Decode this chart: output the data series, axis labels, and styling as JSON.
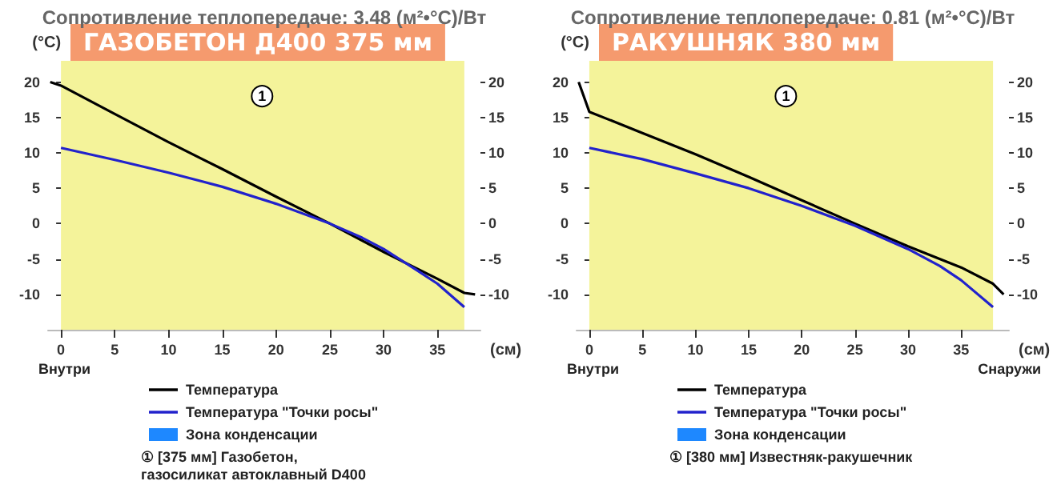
{
  "chart_data": [
    {
      "type": "line",
      "title": "ГАЗОБЕТОН Д400 375 мм",
      "subtitle": "Сопротивление теплопередаче: 3.48 (м²•°C)/Вт",
      "xlabel": "(см)",
      "ylabel": "(°C)",
      "xlim": [
        -1.2,
        39
      ],
      "xticks": [
        0,
        5,
        10,
        15,
        20,
        25,
        30,
        35
      ],
      "ylim": [
        -15,
        23
      ],
      "yticks": [
        -10,
        -5,
        0,
        5,
        10,
        15,
        20
      ],
      "y2lim": [
        -15,
        23
      ],
      "y2ticks": [
        -10,
        -5,
        0,
        5,
        10,
        15,
        20
      ],
      "grid": false,
      "legend": "bottom",
      "marker": "none",
      "line_style": "solid",
      "bands": [
        {
          "axis": "x",
          "from": 0,
          "to": 37.5,
          "color": "#f4f39a"
        }
      ],
      "series": [
        {
          "name": "Температура",
          "color": "#000000",
          "x": [
            -1,
            0,
            5,
            10,
            15,
            20,
            25,
            30,
            35,
            37.5,
            38.5
          ],
          "values": [
            20,
            19.5,
            15.5,
            11.5,
            7.7,
            3.8,
            0,
            -4,
            -7.8,
            -9.8,
            -10
          ]
        },
        {
          "name": "Температура \"Точки росы\"",
          "color": "#2222cc",
          "x": [
            0,
            5,
            10,
            15,
            20,
            25,
            28,
            30,
            33,
            35,
            37.5
          ],
          "values": [
            10.7,
            9,
            7.2,
            5.2,
            2.8,
            0,
            -2,
            -3.6,
            -6.5,
            -8.5,
            -11.8
          ]
        },
        {
          "name": "Зона конденсации",
          "type": "area",
          "color": "#1e88ff"
        }
      ],
      "annotations": [
        {
          "text": "1",
          "x": 18.7,
          "y": 18
        },
        "Внутри",
        "① [375 мм] Газобетон, газосиликат автоклавный D400"
      ]
    },
    {
      "type": "line",
      "title": "РАКУШНЯК 380 мм",
      "subtitle": "Сопротивление теплопередаче: 0.81 (м²•°C)/Вт",
      "xlabel": "(см)",
      "ylabel": "(°C)",
      "xlim": [
        -1.2,
        39.5
      ],
      "xticks": [
        0,
        5,
        10,
        15,
        20,
        25,
        30,
        35
      ],
      "ylim": [
        -15,
        23
      ],
      "yticks": [
        -10,
        -5,
        0,
        5,
        10,
        15,
        20
      ],
      "y2lim": [
        -15,
        23
      ],
      "y2ticks": [
        -10,
        -5,
        0,
        5,
        10,
        15,
        20
      ],
      "grid": false,
      "legend": "bottom",
      "marker": "none",
      "line_style": "solid",
      "bands": [
        {
          "axis": "x",
          "from": 0,
          "to": 38,
          "color": "#f4f39a"
        }
      ],
      "series": [
        {
          "name": "Температура",
          "color": "#000000",
          "x": [
            -1,
            0,
            5,
            10,
            15,
            20,
            25,
            30,
            35,
            38,
            39
          ],
          "values": [
            20,
            15.8,
            12.8,
            9.8,
            6.6,
            3.3,
            0,
            -3.2,
            -6.2,
            -8.5,
            -10
          ]
        },
        {
          "name": "Температура \"Точки росы\"",
          "color": "#2222cc",
          "x": [
            0,
            5,
            10,
            15,
            20,
            25,
            30,
            33,
            35,
            38
          ],
          "values": [
            10.7,
            9.1,
            7.1,
            5,
            2.5,
            -0.3,
            -3.6,
            -6,
            -8,
            -11.8
          ]
        },
        {
          "name": "Зона конденсации",
          "type": "area",
          "color": "#1e88ff"
        }
      ],
      "annotations": [
        {
          "text": "1",
          "x": 18.5,
          "y": 18
        },
        "Внутри",
        "Снаружи",
        "① [380 мм] Известняк-ракушечник"
      ]
    }
  ]
}
